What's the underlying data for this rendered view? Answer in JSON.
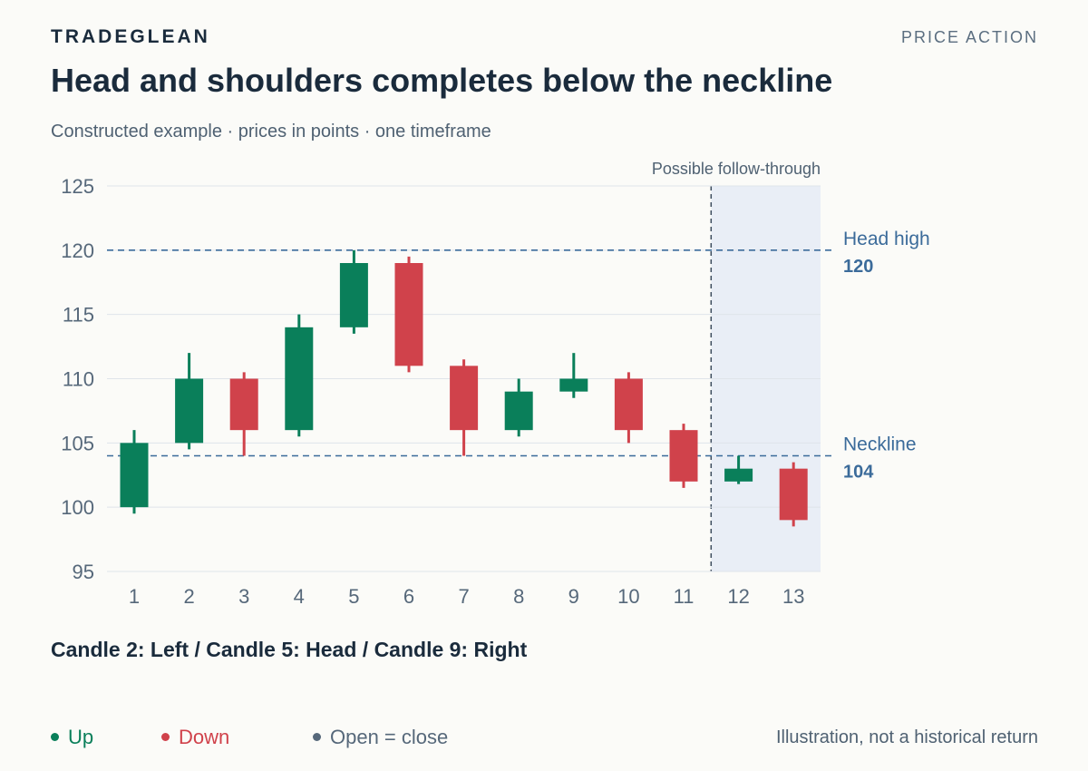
{
  "header": {
    "brand": "TRADEGLEAN",
    "section": "PRICE ACTION",
    "title": "Head and shoulders completes below the neckline",
    "subtitle": "Constructed example · prices in points · one timeframe"
  },
  "chart_data": {
    "type": "candlestick",
    "ylim": [
      95,
      125
    ],
    "yticks": [
      95,
      100,
      105,
      110,
      115,
      120,
      125
    ],
    "grid": true,
    "categories": [
      "1",
      "2",
      "3",
      "4",
      "5",
      "6",
      "7",
      "8",
      "9",
      "10",
      "11",
      "12",
      "13"
    ],
    "candles": [
      {
        "x": "1",
        "open": 100,
        "high": 106,
        "low": 99.5,
        "close": 105
      },
      {
        "x": "2",
        "open": 105,
        "high": 112,
        "low": 104.5,
        "close": 110
      },
      {
        "x": "3",
        "open": 110,
        "high": 110.5,
        "low": 104,
        "close": 106
      },
      {
        "x": "4",
        "open": 106,
        "high": 115,
        "low": 105.5,
        "close": 114
      },
      {
        "x": "5",
        "open": 114,
        "high": 120,
        "low": 113.5,
        "close": 119
      },
      {
        "x": "6",
        "open": 119,
        "high": 119.5,
        "low": 110.5,
        "close": 111
      },
      {
        "x": "7",
        "open": 111,
        "high": 111.5,
        "low": 104,
        "close": 106
      },
      {
        "x": "8",
        "open": 106,
        "high": 110,
        "low": 105.5,
        "close": 109
      },
      {
        "x": "9",
        "open": 109,
        "high": 112,
        "low": 108.5,
        "close": 110
      },
      {
        "x": "10",
        "open": 110,
        "high": 110.5,
        "low": 105,
        "close": 106
      },
      {
        "x": "11",
        "open": 106,
        "high": 106.5,
        "low": 101.5,
        "close": 102
      },
      {
        "x": "12",
        "open": 102,
        "high": 104,
        "low": 101.8,
        "close": 103
      },
      {
        "x": "13",
        "open": 103,
        "high": 103.5,
        "low": 98.5,
        "close": 99
      }
    ],
    "reference_lines": [
      {
        "label": "Head high",
        "value": 120,
        "value_label": "120"
      },
      {
        "label": "Neckline",
        "value": 104,
        "value_label": "104"
      }
    ],
    "shaded_region": {
      "label": "Possible follow-through",
      "from_category": "12",
      "to_category": "13"
    },
    "colors": {
      "up": "#0a7f5a",
      "down": "#d0424b",
      "flat": "#56687a",
      "reference": "#3b6b9a",
      "shade": "#e9eef6",
      "grid": "#dfe4ea",
      "axis_text": "#56687a"
    }
  },
  "footnote": "Candle 2: Left / Candle 5: Head / Candle 9: Right",
  "legend": {
    "items": [
      {
        "label": "Up",
        "color": "#0a7f5a",
        "text_color": "#0a7f5a"
      },
      {
        "label": "Down",
        "color": "#d0424b",
        "text_color": "#d0424b"
      },
      {
        "label": "Open = close",
        "color": "#56687a",
        "text_color": "#56687a"
      }
    ]
  },
  "disclaimer": "Illustration, not a historical return"
}
